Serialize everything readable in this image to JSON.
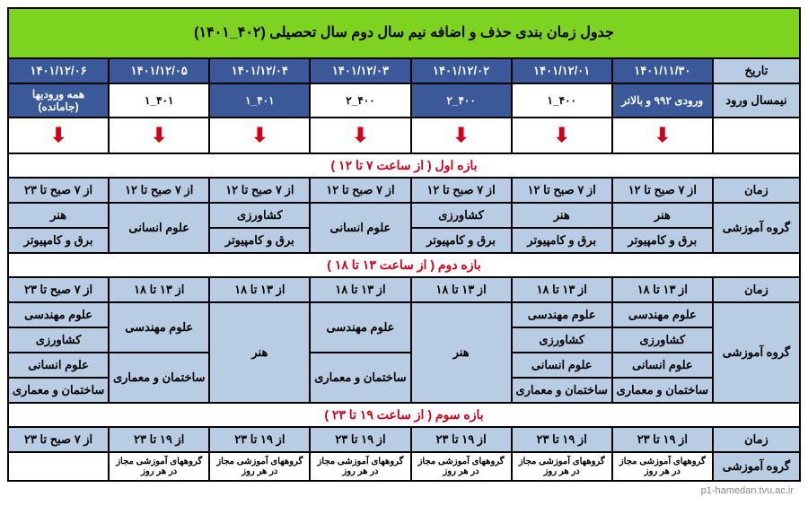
{
  "title": "جدول زمان بندی حذف و اضافه نیم سال دوم سال تحصیلی (۴۰۲_۱۴۰۱)",
  "colors": {
    "title_bg": "#7ED321",
    "header_dark_bg": "#3B5998",
    "header_dark_fg": "#ffffff",
    "light_blue_bg": "#B8CCE4",
    "accent_red": "#D0021B",
    "border": "#000000"
  },
  "labels": {
    "date": "تاریخ",
    "entry_sem": "نیمسال ورود",
    "time": "زمان",
    "group": "گروه آموزشی"
  },
  "dates": [
    "۱۴۰۱/۱۱/۳۰",
    "۱۴۰۱/۱۲/۰۱",
    "۱۴۰۱/۱۲/۰۲",
    "۱۴۰۱/۱۲/۰۳",
    "۱۴۰۱/۱۲/۰۴",
    "۱۴۰۱/۱۲/۰۵",
    "۱۴۰۱/۱۲/۰۶"
  ],
  "semesters": [
    "ورودی ۹۹۲ و بالاتر",
    "۴۰۰_۱",
    "۴۰۰_۲",
    "۴۰۰_۲",
    "۴۰۱_۱",
    "۴۰۱_۱",
    "همه ورودیها (جامانده)"
  ],
  "arrow_glyph": "⬇",
  "sections": [
    {
      "title": "بازه اول ( از ساعت ۷ تا ۱۲ )",
      "time_row": [
        "از ۷ صبح تا ۱۲",
        "از ۷ صبح تا ۱۲",
        "از ۷ صبح تا ۱۲",
        "از ۷ صبح تا ۱۲",
        "از ۷ صبح تا ۱۲",
        "از ۷ صبح تا ۱۲",
        "از ۷ صبح تا ۲۳"
      ],
      "group_rows": [
        {
          "cells": [
            "هنر",
            "هنر",
            "کشاورزی",
            "merge:علوم انسانی",
            "کشاورزی",
            "merge:علوم انسانی",
            "هنر"
          ]
        },
        {
          "cells": [
            "برق و کامپیوتر",
            "برق و کامپیوتر",
            "برق و کامپیوتر",
            "",
            "برق و کامپیوتر",
            "",
            "برق و کامپیوتر"
          ]
        }
      ]
    },
    {
      "title": "بازه دوم ( از ساعت ۱۳ تا ۱۸ )",
      "time_row": [
        "از ۱۳ تا ۱۸",
        "از ۱۳ تا ۱۸",
        "از ۱۳ تا ۱۸",
        "از ۱۳ تا ۱۸",
        "از ۱۳ تا ۱۸",
        "از ۱۳ تا ۱۸",
        "از ۷ صبح تا ۲۳"
      ],
      "group_rows": [
        {
          "cells": [
            "علوم مهندسی",
            "علوم مهندسی",
            "merge4:هنر",
            "merge2a:علوم مهندسی",
            "merge4:هنر",
            "merge2a:علوم مهندسی",
            "علوم مهندسی"
          ]
        },
        {
          "cells": [
            "کشاورزی",
            "کشاورزی",
            "",
            "",
            "",
            "",
            "کشاورزی"
          ]
        },
        {
          "cells": [
            "علوم انسانی",
            "علوم انسانی",
            "",
            "merge2b:ساختمان و معماری",
            "",
            "merge2b:ساختمان و معماری",
            "علوم انسانی"
          ]
        },
        {
          "cells": [
            "ساختمان و معماری",
            "ساختمان و معماری",
            "",
            "",
            "",
            "",
            "ساختمان و معماری"
          ]
        }
      ]
    },
    {
      "title": "بازه سوم ( از ساعت ۱۹ تا ۲۳ )",
      "time_row": [
        "از ۱۹ تا ۲۳",
        "از ۱۹ تا ۲۳",
        "از ۱۹ تا ۲۳",
        "از ۱۹ تا ۲۳",
        "از ۱۹ تا ۲۳",
        "از ۱۹ تا ۲۳",
        "از ۷ صبح تا ۲۳"
      ],
      "group_rows": [
        {
          "cells": [
            "گروههای آموزشی مجاز در هر روز",
            "گروههای آموزشی مجاز در هر روز",
            "گروههای آموزشی مجاز در هر روز",
            "گروههای آموزشی مجاز در هر روز",
            "گروههای آموزشی مجاز در هر روز",
            "گروههای آموزشی مجاز در هر روز",
            ""
          ]
        }
      ]
    }
  ],
  "watermark": "p1-hamedan.tvu.ac.ir"
}
